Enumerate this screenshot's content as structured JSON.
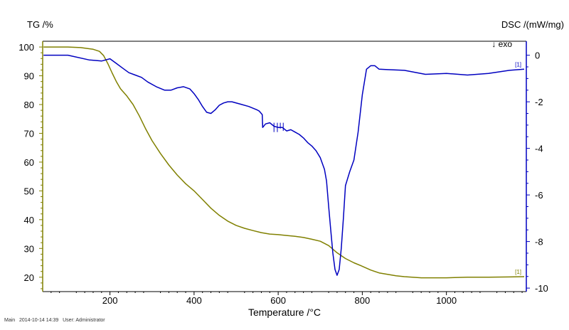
{
  "chart_data": {
    "type": "line",
    "ylabel_left": "TG /%",
    "ylabel_right": "DSC /(mW/mg)",
    "xlabel": "Temperature /°C",
    "annotation": "↓ exo",
    "xlim": [
      40,
      1190
    ],
    "ylim_left": [
      15,
      102
    ],
    "ylim_right": [
      -10.15,
      0.6
    ],
    "xticks": [
      200,
      400,
      600,
      800,
      1000
    ],
    "yticks_left": [
      20,
      30,
      40,
      50,
      60,
      70,
      80,
      90,
      100
    ],
    "yticks_right": [
      -10,
      -8,
      -6,
      -4,
      -2,
      0
    ],
    "grid": false,
    "series": [
      {
        "name": "[1]",
        "axis": "left",
        "color": "#808000",
        "x": [
          42,
          100,
          130,
          160,
          175,
          185,
          195,
          205,
          215,
          225,
          240,
          255,
          270,
          285,
          300,
          320,
          340,
          360,
          380,
          400,
          420,
          440,
          460,
          480,
          500,
          520,
          540,
          560,
          580,
          600,
          620,
          640,
          660,
          680,
          700,
          720,
          740,
          760,
          780,
          800,
          820,
          840,
          860,
          880,
          900,
          940,
          1000,
          1050,
          1100,
          1150,
          1185
        ],
        "values": [
          100,
          100,
          99.8,
          99.2,
          98.5,
          97,
          94.2,
          91,
          88,
          85.5,
          83,
          80,
          76,
          71.5,
          67.5,
          63,
          59,
          55.5,
          52.5,
          50,
          47,
          44,
          41.5,
          39.5,
          38,
          37,
          36.2,
          35.5,
          35,
          34.8,
          34.5,
          34.2,
          33.8,
          33.2,
          32.5,
          31,
          28.5,
          26.5,
          25,
          23.8,
          22.5,
          21.5,
          21,
          20.5,
          20.2,
          19.8,
          19.8,
          20,
          20,
          20.1,
          20.2
        ]
      },
      {
        "name": "[1]",
        "axis": "right",
        "color": "#0000c0",
        "x": [
          42,
          100,
          150,
          180,
          200,
          215,
          230,
          245,
          260,
          275,
          290,
          310,
          330,
          345,
          360,
          375,
          390,
          400,
          410,
          420,
          430,
          440,
          450,
          460,
          470,
          480,
          490,
          510,
          530,
          550,
          555,
          562,
          563,
          570,
          580,
          590,
          600,
          610,
          620,
          630,
          640,
          650,
          660,
          670,
          680,
          690,
          700,
          710,
          715,
          720,
          725,
          730,
          735,
          740,
          745,
          750,
          755,
          760,
          770,
          780,
          790,
          800,
          810,
          820,
          830,
          840,
          860,
          900,
          950,
          1000,
          1050,
          1100,
          1150,
          1185
        ],
        "values": [
          0,
          0,
          -0.2,
          -0.25,
          -0.15,
          -0.35,
          -0.55,
          -0.75,
          -0.85,
          -0.95,
          -1.15,
          -1.35,
          -1.5,
          -1.5,
          -1.4,
          -1.35,
          -1.45,
          -1.65,
          -1.9,
          -2.2,
          -2.45,
          -2.5,
          -2.35,
          -2.15,
          -2.05,
          -2,
          -2,
          -2.1,
          -2.2,
          -2.35,
          -2.4,
          -2.55,
          -3.1,
          -2.95,
          -2.9,
          -3.05,
          -3.1,
          -3.1,
          -3.25,
          -3.2,
          -3.3,
          -3.4,
          -3.55,
          -3.75,
          -3.9,
          -4.1,
          -4.4,
          -4.9,
          -5.4,
          -6.5,
          -7.5,
          -8.5,
          -9.2,
          -9.45,
          -9.2,
          -8.3,
          -7,
          -5.6,
          -5,
          -4.5,
          -3.3,
          -1.7,
          -0.6,
          -0.45,
          -0.45,
          -0.6,
          -0.62,
          -0.65,
          -0.82,
          -0.78,
          -0.85,
          -0.78,
          -0.65,
          -0.6
        ]
      }
    ]
  },
  "footer": {
    "text": "Main   2014-10-14 14:39   User: Administrator"
  }
}
